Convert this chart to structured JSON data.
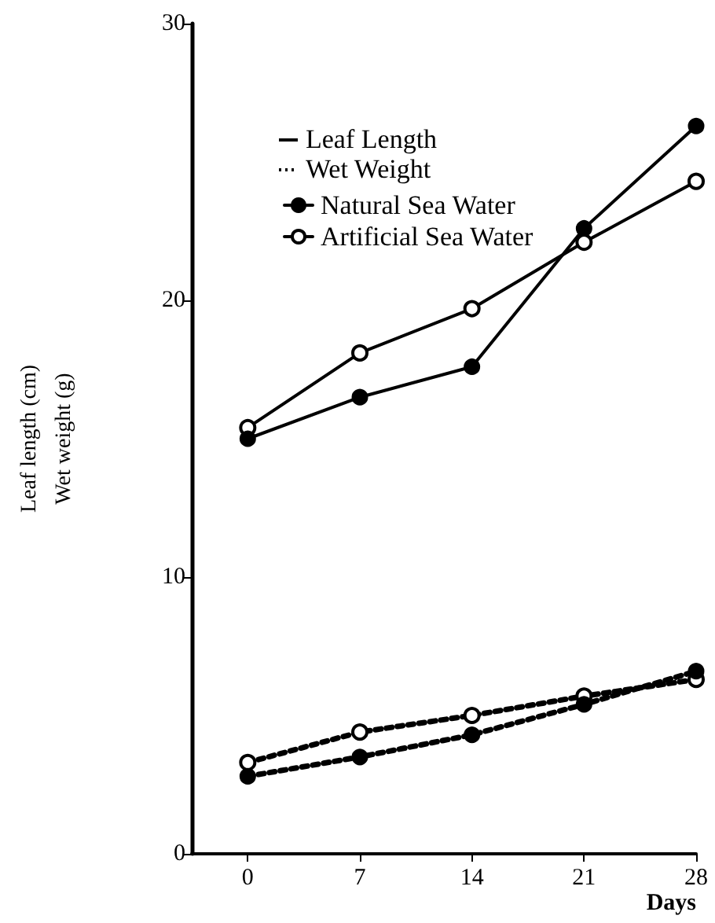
{
  "chart_data": {
    "type": "line",
    "xlabel": "Days",
    "ylabel": "Leaf length (cm)\nWet weight (g)",
    "x": [
      0,
      7,
      14,
      21,
      28
    ],
    "xlim": [
      -3.5,
      28
    ],
    "xticks": [
      0,
      7,
      14,
      21,
      28
    ],
    "ylim": [
      0,
      30
    ],
    "yticks": [
      0,
      10,
      20,
      30
    ],
    "series": [
      {
        "name": "Natural Sea Water",
        "color": "#000000",
        "line_style": "solid",
        "values": [
          15.0,
          16.5,
          17.6,
          22.6,
          26.3
        ]
      },
      {
        "name": "Artificial Sea Water",
        "color": "#000000",
        "line_style": "solid",
        "values": [
          15.4,
          18.1,
          19.7,
          22.1,
          24.3
        ]
      },
      {
        "color": "#000000",
        "line_style": "dotted",
        "values": [
          2.8,
          3.5,
          4.3,
          5.4,
          6.6
        ]
      },
      {
        "color": "#000000",
        "line_style": "dotted",
        "values": [
          3.3,
          4.4,
          5.0,
          5.7,
          6.3
        ]
      }
    ],
    "annotations": [
      "Leaf Length",
      "Wet Weight"
    ],
    "marker": "circle",
    "grid": false,
    "legend": "top left"
  }
}
